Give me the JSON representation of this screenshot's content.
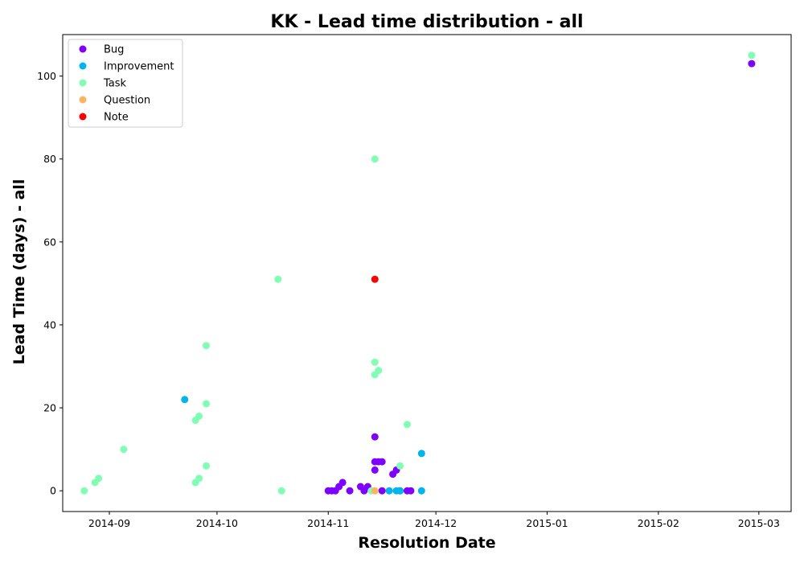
{
  "chart_data": {
    "type": "scatter",
    "title": "KK - Lead time distribution - all",
    "xlabel": "Resolution Date",
    "ylabel": "Lead Time (days) - all",
    "x_is_date": true,
    "xlim": [
      "2014-08-19",
      "2015-03-10"
    ],
    "ylim": [
      -5,
      110
    ],
    "xticks": [
      "2014-09",
      "2014-10",
      "2014-11",
      "2014-12",
      "2015-01",
      "2015-02",
      "2015-03"
    ],
    "yticks": [
      0,
      20,
      40,
      60,
      80,
      100
    ],
    "grid": false,
    "legend_position": "upper-left",
    "colors": {
      "Bug": "#7f00ff",
      "Improvement": "#00b5eb",
      "Task": "#80ffb4",
      "Question": "#ffb360",
      "Note": "#ff0000"
    },
    "series": [
      {
        "name": "Bug",
        "points": [
          [
            "2014-11-01",
            0
          ],
          [
            "2014-11-02",
            0
          ],
          [
            "2014-11-03",
            0
          ],
          [
            "2014-11-04",
            1
          ],
          [
            "2014-11-05",
            2
          ],
          [
            "2014-11-07",
            0
          ],
          [
            "2014-11-10",
            1
          ],
          [
            "2014-11-11",
            0
          ],
          [
            "2014-11-12",
            1
          ],
          [
            "2014-11-14",
            13
          ],
          [
            "2014-11-14",
            7
          ],
          [
            "2014-11-14",
            5
          ],
          [
            "2014-11-15",
            7
          ],
          [
            "2014-11-16",
            7
          ],
          [
            "2014-11-16",
            0
          ],
          [
            "2014-11-19",
            4
          ],
          [
            "2014-11-20",
            5
          ],
          [
            "2014-11-21",
            0
          ],
          [
            "2014-11-23",
            0
          ],
          [
            "2014-11-24",
            0
          ],
          [
            "2015-02-27",
            103
          ]
        ]
      },
      {
        "name": "Improvement",
        "points": [
          [
            "2014-09-22",
            22
          ],
          [
            "2014-11-18",
            0
          ],
          [
            "2014-11-20",
            0
          ],
          [
            "2014-11-21",
            0
          ],
          [
            "2014-11-27",
            9
          ],
          [
            "2014-11-27",
            0
          ]
        ]
      },
      {
        "name": "Task",
        "points": [
          [
            "2014-08-25",
            0
          ],
          [
            "2014-08-28",
            2
          ],
          [
            "2014-08-29",
            3
          ],
          [
            "2014-09-05",
            10
          ],
          [
            "2014-09-25",
            17
          ],
          [
            "2014-09-25",
            2
          ],
          [
            "2014-09-26",
            18
          ],
          [
            "2014-09-26",
            3
          ],
          [
            "2014-09-28",
            35
          ],
          [
            "2014-09-28",
            21
          ],
          [
            "2014-09-28",
            6
          ],
          [
            "2014-10-18",
            51
          ],
          [
            "2014-10-19",
            0
          ],
          [
            "2014-11-13",
            0
          ],
          [
            "2014-11-14",
            80
          ],
          [
            "2014-11-14",
            31
          ],
          [
            "2014-11-14",
            28
          ],
          [
            "2014-11-15",
            29
          ],
          [
            "2014-11-21",
            6
          ],
          [
            "2014-11-23",
            16
          ],
          [
            "2015-02-27",
            105
          ]
        ]
      },
      {
        "name": "Question",
        "points": [
          [
            "2014-11-14",
            0
          ]
        ]
      },
      {
        "name": "Note",
        "points": [
          [
            "2014-11-14",
            51
          ]
        ]
      }
    ]
  }
}
